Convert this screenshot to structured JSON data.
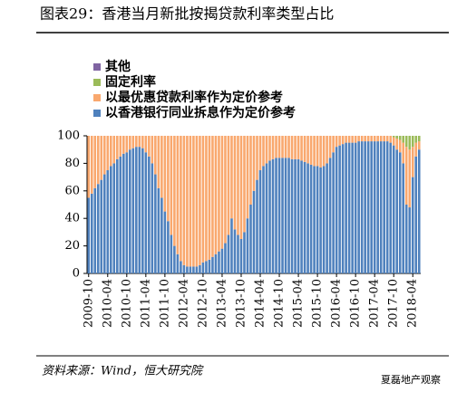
{
  "chart_data": {
    "type": "stacked-bar",
    "title": "图表29：香港当月新批按揭贷款利率类型占比",
    "source": "资料来源：Wind，恒大研究院",
    "watermark": "夏磊地产观察",
    "categories": [
      "2009-10",
      null,
      null,
      null,
      null,
      null,
      "2010-04",
      null,
      null,
      null,
      null,
      null,
      "2010-10",
      null,
      null,
      null,
      null,
      null,
      "2011-04",
      null,
      null,
      null,
      null,
      null,
      "2011-10",
      null,
      null,
      null,
      null,
      null,
      "2012-04",
      null,
      null,
      null,
      null,
      null,
      "2012-10",
      null,
      null,
      null,
      null,
      null,
      "2013-04",
      null,
      null,
      null,
      null,
      null,
      "2013-10",
      null,
      null,
      null,
      null,
      null,
      "2014-04",
      null,
      null,
      null,
      null,
      null,
      "2014-10",
      null,
      null,
      null,
      null,
      null,
      "2015-04",
      null,
      null,
      null,
      null,
      null,
      "2015-10",
      null,
      null,
      null,
      null,
      null,
      "2016-04",
      null,
      null,
      null,
      null,
      null,
      "2016-10",
      null,
      null,
      null,
      null,
      null,
      "2017-04",
      null,
      null,
      null,
      null,
      null,
      "2017-10",
      null,
      null,
      null,
      null,
      null,
      "2018-04",
      null,
      null
    ],
    "series": [
      {
        "name": "以香港银行同业拆息作为定价参考",
        "color": "#4f81bd",
        "values": [
          55,
          58,
          62,
          65,
          68,
          72,
          75,
          78,
          80,
          83,
          85,
          87,
          88,
          90,
          91,
          92,
          92,
          91,
          88,
          85,
          80,
          72,
          62,
          55,
          45,
          38,
          28,
          20,
          14,
          9,
          6,
          5,
          5,
          5,
          5,
          6,
          8,
          9,
          10,
          12,
          14,
          16,
          18,
          22,
          28,
          40,
          32,
          28,
          25,
          30,
          40,
          50,
          60,
          68,
          75,
          78,
          80,
          82,
          83,
          84,
          84,
          84,
          84,
          84,
          83,
          83,
          83,
          82,
          81,
          80,
          79,
          78,
          78,
          77,
          78,
          80,
          84,
          88,
          92,
          93,
          94,
          95,
          95,
          95,
          95,
          96,
          96,
          96,
          96,
          96,
          96,
          96,
          96,
          96,
          96,
          95,
          93,
          90,
          88,
          80,
          50,
          48,
          70,
          85,
          90
        ]
      },
      {
        "name": "以最优惠贷款利率作为定价参考",
        "color": "#f9a86e",
        "values": [
          45,
          42,
          38,
          35,
          32,
          28,
          25,
          22,
          20,
          17,
          15,
          13,
          12,
          10,
          9,
          8,
          8,
          9,
          12,
          15,
          20,
          28,
          38,
          45,
          55,
          62,
          72,
          80,
          86,
          91,
          94,
          95,
          95,
          95,
          95,
          94,
          92,
          91,
          90,
          88,
          86,
          84,
          82,
          78,
          72,
          60,
          68,
          72,
          75,
          70,
          60,
          50,
          40,
          32,
          25,
          22,
          20,
          18,
          17,
          16,
          16,
          16,
          16,
          16,
          17,
          17,
          17,
          18,
          19,
          20,
          21,
          22,
          22,
          23,
          22,
          20,
          16,
          12,
          8,
          7,
          6,
          5,
          5,
          5,
          5,
          4,
          4,
          4,
          4,
          4,
          4,
          4,
          4,
          4,
          4,
          5,
          6,
          8,
          9,
          15,
          42,
          42,
          22,
          10,
          6
        ]
      },
      {
        "name": "固定利率",
        "color": "#9bbb59",
        "values": [
          0,
          0,
          0,
          0,
          0,
          0,
          0,
          0,
          0,
          0,
          0,
          0,
          0,
          0,
          0,
          0,
          0,
          0,
          0,
          0,
          0,
          0,
          0,
          0,
          0,
          0,
          0,
          0,
          0,
          0,
          0,
          0,
          0,
          0,
          0,
          0,
          0,
          0,
          0,
          0,
          0,
          0,
          0,
          0,
          0,
          0,
          0,
          0,
          0,
          0,
          0,
          0,
          0,
          0,
          0,
          0,
          0,
          0,
          0,
          0,
          0,
          0,
          0,
          0,
          0,
          0,
          0,
          0,
          0,
          0,
          0,
          0,
          0,
          0,
          0,
          0,
          0,
          0,
          0,
          0,
          0,
          0,
          0,
          0,
          0,
          0,
          0,
          0,
          0,
          0,
          0,
          0,
          0,
          0,
          0,
          0,
          1,
          2,
          3,
          5,
          8,
          10,
          8,
          5,
          4
        ]
      },
      {
        "name": "其他",
        "color": "#8064a2",
        "values": [
          0,
          0,
          0,
          0,
          0,
          0,
          0,
          0,
          0,
          0,
          0,
          0,
          0,
          0,
          0,
          0,
          0,
          0,
          0,
          0,
          0,
          0,
          0,
          0,
          0,
          0,
          0,
          0,
          0,
          0,
          0,
          0,
          0,
          0,
          0,
          0,
          0,
          0,
          0,
          0,
          0,
          0,
          0,
          0,
          0,
          0,
          0,
          0,
          0,
          0,
          0,
          0,
          0,
          0,
          0,
          0,
          0,
          0,
          0,
          0,
          0,
          0,
          0,
          0,
          0,
          0,
          0,
          0,
          0,
          0,
          0,
          0,
          0,
          0,
          0,
          0,
          0,
          0,
          0,
          0,
          0,
          0,
          0,
          0,
          0,
          0,
          0,
          0,
          0,
          0,
          0,
          0,
          0,
          0,
          0,
          0,
          0,
          0,
          0,
          0,
          0,
          0,
          0,
          0,
          0
        ]
      }
    ],
    "ylim": [
      0,
      100
    ],
    "yticks": [
      0,
      20,
      40,
      60,
      80,
      100
    ]
  }
}
